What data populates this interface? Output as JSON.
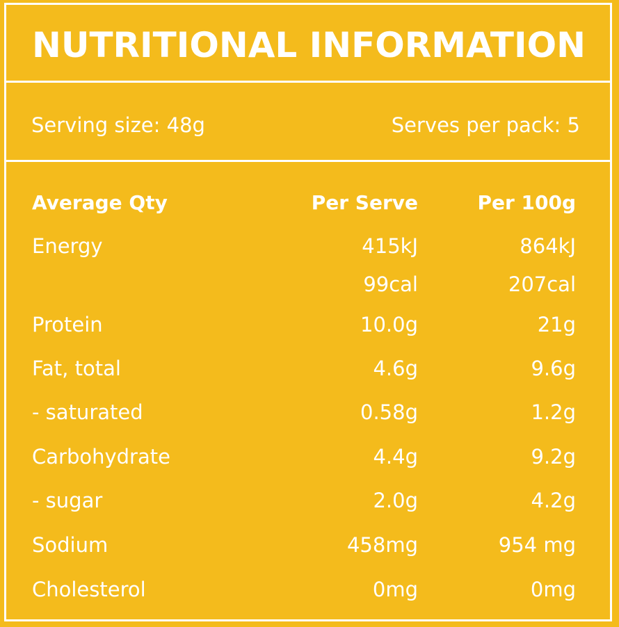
{
  "title": "NUTRITIONAL INFORMATION",
  "serving": {
    "size": "Serving size: 48g",
    "per_pack": "Serves per pack: 5"
  },
  "table": {
    "headers": [
      "Average Qty",
      "Per Serve",
      "Per 100g"
    ],
    "rows": [
      {
        "name": "Energy",
        "per_serve": "415kJ",
        "per_100g": "864kJ"
      },
      {
        "name": "",
        "per_serve": "99cal",
        "per_100g": "207cal"
      },
      {
        "name": "Protein",
        "per_serve": "10.0g",
        "per_100g": "21g"
      },
      {
        "name": "Fat, total",
        "per_serve": "4.6g",
        "per_100g": "9.6g"
      },
      {
        "name": "- saturated",
        "per_serve": "0.58g",
        "per_100g": "1.2g"
      },
      {
        "name": "Carbohydrate",
        "per_serve": "4.4g",
        "per_100g": "9.2g"
      },
      {
        "name": "- sugar",
        "per_serve": "2.0g",
        "per_100g": "4.2g"
      },
      {
        "name": "Sodium",
        "per_serve": "458mg",
        "per_100g": "954 mg"
      },
      {
        "name": "Cholesterol",
        "per_serve": "0mg",
        "per_100g": "0mg"
      }
    ]
  },
  "colors": {
    "background": "#f4bb1c",
    "text": "#ffffff",
    "border": "#ffffff"
  }
}
